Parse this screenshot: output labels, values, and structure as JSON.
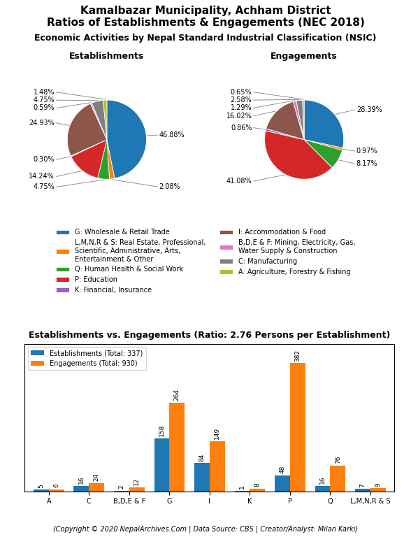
{
  "title": "Kamalbazar Municipality, Achham District\nRatios of Establishments & Engagements (NEC 2018)",
  "subtitle": "Economic Activities by Nepal Standard Industrial Classification (NSIC)",
  "annotations": [
    "(Copyright © 2020 NepalArchives.Com | Data Source: CBS | Creator/Analyst: Milan Karki)"
  ],
  "chart_data": [
    {
      "type": "pie",
      "title": "Establishments",
      "categories": [
        "G: Wholesale & Retail Trade",
        "L,M,N,R & S: Real Estate, Professional,\nScientific, Administrative, Arts,\nEntertainment & Other",
        "Q: Human Health & Social Work",
        "P: Education",
        "K: Financial, Insurance",
        "I: Accommodation & Food",
        "B,D,E & F: Mining, Electricity, Gas,\nWater Supply & Construction",
        "C: Manufacturing",
        "A: Agriculture, Forestry & Fishing"
      ],
      "values": [
        46.88,
        2.08,
        4.75,
        14.24,
        0.3,
        24.93,
        0.59,
        4.75,
        1.48
      ],
      "value_labels": [
        "46.88%",
        "2.08%",
        "4.75%",
        "14.24%",
        "0.30%",
        "24.93%",
        "0.59%",
        "4.75%",
        "1.48%"
      ],
      "data_labels": true,
      "legend": "upper center"
    },
    {
      "type": "pie",
      "title": "Engagements",
      "categories": [
        "G: Wholesale & Retail Trade",
        "L,M,N,R & S: Real Estate, Professional,\nScientific, Administrative, Arts,\nEntertainment & Other",
        "Q: Human Health & Social Work",
        "P: Education",
        "K: Financial, Insurance",
        "I: Accommodation & Food",
        "B,D,E & F: Mining, Electricity, Gas,\nWater Supply & Construction",
        "C: Manufacturing",
        "A: Agriculture, Forestry & Fishing"
      ],
      "values": [
        28.39,
        0.97,
        8.17,
        41.08,
        0.86,
        16.02,
        1.29,
        2.58,
        0.65
      ],
      "value_labels": [
        "28.39%",
        "0.97%",
        "8.17%",
        "41.08%",
        "0.86%",
        "16.02%",
        "1.29%",
        "2.58%",
        "0.65%"
      ],
      "data_labels": true
    },
    {
      "type": "bar",
      "title": "Establishments vs. Engagements (Ratio: 2.76 Persons per Establishment)",
      "categories": [
        "A",
        "C",
        "B,D,E & F",
        "G",
        "I",
        "K",
        "P",
        "Q",
        "L,M,N,R & S"
      ],
      "series": [
        {
          "name": "Establishments (Total: 337)",
          "values": [
            5,
            16,
            2,
            158,
            84,
            1,
            48,
            16,
            7
          ]
        },
        {
          "name": "Engagements (Total: 930)",
          "values": [
            6,
            24,
            12,
            264,
            149,
            8,
            382,
            76,
            9
          ]
        }
      ],
      "ylim": [
        0,
        440
      ],
      "data_labels": true,
      "tick_labels": "x",
      "legend": "upper left"
    }
  ]
}
